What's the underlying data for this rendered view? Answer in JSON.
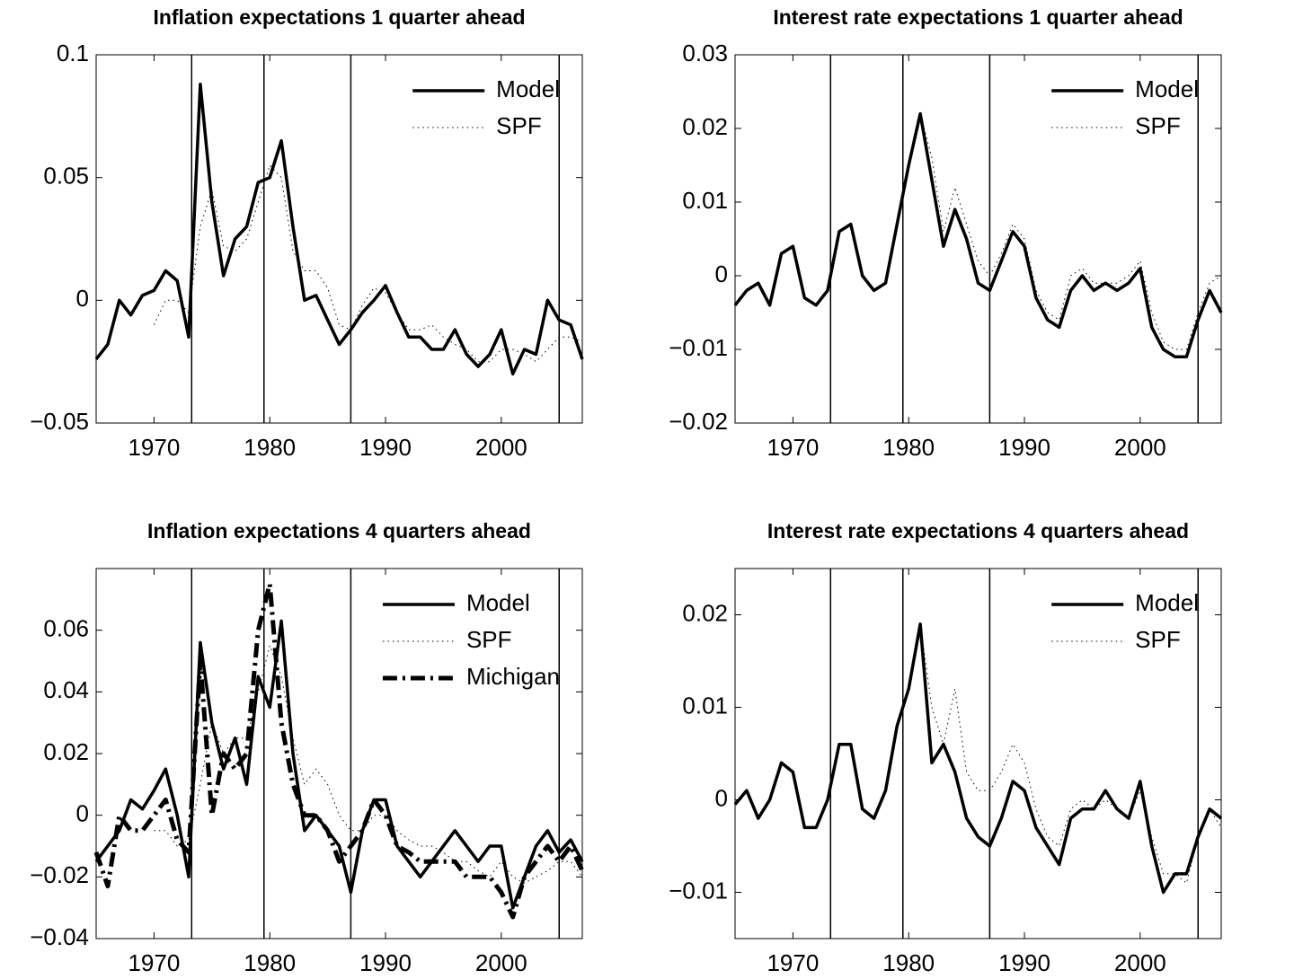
{
  "chart_data": [
    {
      "type": "line",
      "title": "Inflation expectations 1 quarter ahead",
      "legend": "upper right",
      "xlim": [
        1965,
        2007
      ],
      "xticks": [
        1970,
        1980,
        1990,
        2000
      ],
      "ylim": [
        -0.05,
        0.1
      ],
      "yticks": [
        {
          "value": -0.05,
          "label": "−0.05"
        },
        0,
        0.05,
        0.1
      ],
      "vlines": [
        1973.25,
        1979.5,
        1987,
        2005
      ],
      "x": [
        1965,
        1966,
        1967,
        1968,
        1969,
        1970,
        1971,
        1972,
        1973,
        1974,
        1975,
        1976,
        1977,
        1978,
        1979,
        1980,
        1981,
        1982,
        1983,
        1984,
        1985,
        1986,
        1987,
        1988,
        1989,
        1990,
        1991,
        1992,
        1993,
        1994,
        1995,
        1996,
        1997,
        1998,
        1999,
        2000,
        2001,
        2002,
        2003,
        2004,
        2005,
        2006,
        2007
      ],
      "series": [
        {
          "name": "Model",
          "color": "#000000",
          "linestyle": "solid",
          "values": [
            -0.024,
            -0.018,
            0.0,
            -0.006,
            0.002,
            0.004,
            0.012,
            0.008,
            -0.015,
            0.088,
            0.04,
            0.01,
            0.025,
            0.03,
            0.048,
            0.05,
            0.065,
            0.03,
            0.0,
            0.002,
            -0.008,
            -0.018,
            -0.012,
            -0.005,
            0.0,
            0.006,
            -0.005,
            -0.015,
            -0.015,
            -0.02,
            -0.02,
            -0.012,
            -0.022,
            -0.027,
            -0.022,
            -0.012,
            -0.03,
            -0.02,
            -0.022,
            0.0,
            -0.008,
            -0.01,
            -0.024
          ]
        },
        {
          "name": "SPF",
          "color": "#000000",
          "linestyle": "dotted",
          "values": [
            null,
            null,
            null,
            null,
            null,
            -0.01,
            0.0,
            0.0,
            -0.005,
            0.03,
            0.045,
            0.022,
            0.02,
            0.025,
            0.04,
            0.055,
            0.05,
            0.02,
            0.012,
            0.012,
            0.005,
            -0.01,
            -0.012,
            -0.002,
            0.005,
            0.003,
            -0.005,
            -0.012,
            -0.012,
            -0.01,
            -0.015,
            -0.018,
            -0.02,
            -0.025,
            -0.025,
            -0.02,
            -0.02,
            -0.022,
            -0.025,
            -0.02,
            -0.015,
            -0.015,
            -0.017
          ]
        }
      ]
    },
    {
      "type": "line",
      "title": "Interest rate expectations 1 quarter ahead",
      "legend": "upper right",
      "xlim": [
        1965,
        2007
      ],
      "xticks": [
        1970,
        1980,
        1990,
        2000
      ],
      "ylim": [
        -0.02,
        0.03
      ],
      "yticks": [
        {
          "value": -0.02,
          "label": "−0.02"
        },
        {
          "value": -0.01,
          "label": "−0.01"
        },
        0,
        0.01,
        0.02,
        0.03
      ],
      "vlines": [
        1973.25,
        1979.5,
        1987,
        2005
      ],
      "x": [
        1965,
        1966,
        1967,
        1968,
        1969,
        1970,
        1971,
        1972,
        1973,
        1974,
        1975,
        1976,
        1977,
        1978,
        1979,
        1980,
        1981,
        1982,
        1983,
        1984,
        1985,
        1986,
        1987,
        1988,
        1989,
        1990,
        1991,
        1992,
        1993,
        1994,
        1995,
        1996,
        1997,
        1998,
        1999,
        2000,
        2001,
        2002,
        2003,
        2004,
        2005,
        2006,
        2007
      ],
      "series": [
        {
          "name": "Model",
          "color": "#000000",
          "linestyle": "solid",
          "values": [
            -0.004,
            -0.002,
            -0.001,
            -0.004,
            0.003,
            0.004,
            -0.003,
            -0.004,
            -0.002,
            0.006,
            0.007,
            0.0,
            -0.002,
            -0.001,
            0.007,
            0.015,
            0.022,
            0.013,
            0.004,
            0.009,
            0.005,
            -0.001,
            -0.002,
            0.002,
            0.006,
            0.004,
            -0.003,
            -0.006,
            -0.007,
            -0.002,
            0.0,
            -0.002,
            -0.001,
            -0.002,
            -0.001,
            0.001,
            -0.007,
            -0.01,
            -0.011,
            -0.011,
            -0.006,
            -0.002,
            -0.005
          ]
        },
        {
          "name": "SPF",
          "color": "#000000",
          "linestyle": "dotted",
          "values": [
            null,
            null,
            null,
            null,
            null,
            null,
            null,
            null,
            null,
            null,
            null,
            null,
            null,
            null,
            null,
            null,
            0.022,
            0.016,
            0.006,
            0.012,
            0.007,
            0.002,
            0.0,
            0.003,
            0.007,
            0.005,
            -0.002,
            -0.005,
            -0.006,
            0.0,
            0.001,
            -0.001,
            -0.001,
            -0.001,
            0.0,
            0.002,
            -0.005,
            -0.009,
            -0.01,
            -0.01,
            -0.005,
            -0.001,
            0.0
          ]
        }
      ]
    },
    {
      "type": "line",
      "title": "Inflation expectations 4 quarters ahead",
      "legend": "upper right",
      "xlim": [
        1965,
        2007
      ],
      "xticks": [
        1970,
        1980,
        1990,
        2000
      ],
      "ylim": [
        -0.04,
        0.08
      ],
      "yticks": [
        {
          "value": -0.04,
          "label": "−0.04"
        },
        {
          "value": -0.02,
          "label": "−0.02"
        },
        0,
        0.02,
        0.04,
        0.06
      ],
      "vlines": [
        1973.25,
        1979.5,
        1987,
        2005
      ],
      "x": [
        1965,
        1966,
        1967,
        1968,
        1969,
        1970,
        1971,
        1972,
        1973,
        1974,
        1975,
        1976,
        1977,
        1978,
        1979,
        1980,
        1981,
        1982,
        1983,
        1984,
        1985,
        1986,
        1987,
        1988,
        1989,
        1990,
        1991,
        1992,
        1993,
        1994,
        1995,
        1996,
        1997,
        1998,
        1999,
        2000,
        2001,
        2002,
        2003,
        2004,
        2005,
        2006,
        2007
      ],
      "series": [
        {
          "name": "Model",
          "color": "#000000",
          "linestyle": "solid",
          "values": [
            -0.015,
            -0.01,
            -0.005,
            0.005,
            0.002,
            0.008,
            0.015,
            0.0,
            -0.02,
            0.056,
            0.03,
            0.015,
            0.025,
            0.01,
            0.045,
            0.035,
            0.063,
            0.02,
            -0.005,
            0.0,
            -0.005,
            -0.01,
            -0.025,
            -0.005,
            0.005,
            0.005,
            -0.01,
            -0.015,
            -0.02,
            -0.015,
            -0.01,
            -0.005,
            -0.01,
            -0.015,
            -0.01,
            -0.01,
            -0.03,
            -0.02,
            -0.01,
            -0.005,
            -0.012,
            -0.008,
            -0.015
          ]
        },
        {
          "name": "SPF",
          "color": "#000000",
          "linestyle": "dotted",
          "values": [
            null,
            null,
            null,
            null,
            null,
            -0.005,
            -0.005,
            -0.01,
            -0.008,
            0.01,
            0.03,
            0.02,
            0.025,
            0.025,
            0.04,
            0.055,
            0.045,
            0.025,
            0.01,
            0.015,
            0.01,
            0.0,
            -0.005,
            -0.005,
            0.0,
            0.0,
            -0.005,
            -0.008,
            -0.01,
            -0.01,
            -0.012,
            -0.015,
            -0.015,
            -0.018,
            -0.02,
            -0.015,
            -0.02,
            -0.022,
            -0.02,
            -0.018,
            -0.015,
            -0.015,
            -0.02
          ]
        },
        {
          "name": "Michigan",
          "color": "#000000",
          "linestyle": "dashdot",
          "values": [
            -0.012,
            -0.023,
            0.0,
            -0.005,
            -0.005,
            0.0,
            0.005,
            -0.008,
            -0.012,
            0.05,
            0.0,
            0.02,
            0.015,
            0.02,
            0.06,
            0.075,
            0.03,
            0.01,
            0.0,
            0.0,
            -0.005,
            -0.015,
            -0.01,
            -0.005,
            0.005,
            0.0,
            -0.01,
            -0.012,
            -0.015,
            -0.015,
            -0.015,
            -0.015,
            -0.02,
            -0.02,
            -0.02,
            -0.025,
            -0.033,
            -0.02,
            -0.015,
            -0.01,
            -0.015,
            -0.01,
            -0.018
          ]
        }
      ]
    },
    {
      "type": "line",
      "title": "Interest rate expectations 4 quarters ahead",
      "legend": "upper right",
      "xlim": [
        1965,
        2007
      ],
      "xticks": [
        1970,
        1980,
        1990,
        2000
      ],
      "ylim": [
        -0.015,
        0.025
      ],
      "yticks": [
        {
          "value": -0.01,
          "label": "−0.01"
        },
        0,
        0.01,
        0.02
      ],
      "vlines": [
        1973.25,
        1979.5,
        1987,
        2005
      ],
      "x": [
        1965,
        1966,
        1967,
        1968,
        1969,
        1970,
        1971,
        1972,
        1973,
        1974,
        1975,
        1976,
        1977,
        1978,
        1979,
        1980,
        1981,
        1982,
        1983,
        1984,
        1985,
        1986,
        1987,
        1988,
        1989,
        1990,
        1991,
        1992,
        1993,
        1994,
        1995,
        1996,
        1997,
        1998,
        1999,
        2000,
        2001,
        2002,
        2003,
        2004,
        2005,
        2006,
        2007
      ],
      "series": [
        {
          "name": "Model",
          "color": "#000000",
          "linestyle": "solid",
          "values": [
            -0.0005,
            0.001,
            -0.002,
            0.0,
            0.004,
            0.003,
            -0.003,
            -0.003,
            0.0,
            0.006,
            0.006,
            -0.001,
            -0.002,
            0.001,
            0.008,
            0.012,
            0.019,
            0.004,
            0.006,
            0.003,
            -0.002,
            -0.004,
            -0.005,
            -0.002,
            0.002,
            0.001,
            -0.003,
            -0.005,
            -0.007,
            -0.002,
            -0.001,
            -0.001,
            0.001,
            -0.001,
            -0.002,
            0.002,
            -0.005,
            -0.01,
            -0.008,
            -0.008,
            -0.004,
            -0.001,
            -0.002
          ]
        },
        {
          "name": "SPF",
          "color": "#000000",
          "linestyle": "dotted",
          "values": [
            null,
            null,
            null,
            null,
            null,
            null,
            null,
            null,
            null,
            null,
            null,
            null,
            null,
            null,
            null,
            null,
            0.019,
            0.01,
            0.006,
            0.012,
            0.003,
            0.001,
            0.001,
            0.003,
            0.006,
            0.004,
            -0.001,
            -0.004,
            -0.005,
            -0.001,
            0.0,
            -0.001,
            0.0,
            -0.001,
            -0.002,
            0.001,
            -0.004,
            -0.008,
            -0.008,
            -0.009,
            -0.004,
            -0.001,
            -0.003
          ]
        }
      ]
    }
  ]
}
